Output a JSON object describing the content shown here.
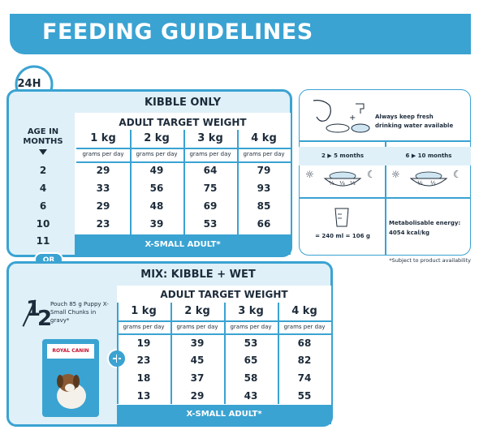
{
  "header": {
    "title": "FEEDING GUIDELINES"
  },
  "badge_24h": "24H",
  "kibble": {
    "title": "KIBBLE ONLY",
    "subtitle": "ADULT TARGET WEIGHT",
    "age_label_line1": "AGE IN",
    "age_label_line2": "MONTHS",
    "weights": [
      "1 kg",
      "2 kg",
      "3 kg",
      "4 kg"
    ],
    "unit": "grams per day",
    "ages": [
      "2",
      "4",
      "6",
      "10",
      "11"
    ],
    "rows": [
      [
        "29",
        "49",
        "64",
        "79"
      ],
      [
        "33",
        "56",
        "75",
        "93"
      ],
      [
        "29",
        "48",
        "69",
        "85"
      ],
      [
        "23",
        "39",
        "53",
        "66"
      ]
    ],
    "footer": "X-SMALL ADULT*"
  },
  "or_label": "OR",
  "mix": {
    "title": "MIX: KIBBLE + WET",
    "subtitle": "ADULT TARGET WEIGHT",
    "fraction_num": "1",
    "fraction_den": "2",
    "pouch_text": "Pouch 85 g Puppy X-Small Chunks in gravy*",
    "brand": "ROYAL CANIN",
    "weights": [
      "1 kg",
      "2 kg",
      "3 kg",
      "4 kg"
    ],
    "unit": "grams per day",
    "plus": "+",
    "rows": [
      [
        "19",
        "39",
        "53",
        "68"
      ],
      [
        "23",
        "45",
        "65",
        "82"
      ],
      [
        "18",
        "37",
        "58",
        "74"
      ],
      [
        "13",
        "29",
        "43",
        "55"
      ]
    ],
    "footer": "X-SMALL ADULT*"
  },
  "info": {
    "water_line1": "Always keep fresh",
    "water_line2": "drinking water available",
    "meals_2_5": "2 ▶ 5 months",
    "meals_6_10": "6 ▶ 10 months",
    "frac_third": "⅓",
    "frac_half": "½",
    "cup": "= 240 ml = 106 g",
    "energy_line1": "Metabolisable energy:",
    "energy_line2": "4054 kcal/kg"
  },
  "note": "*Subject to product availability",
  "colors": {
    "accent": "#3aa3d2",
    "panel_bg": "#dff0f8",
    "text": "#1d2b3a"
  }
}
